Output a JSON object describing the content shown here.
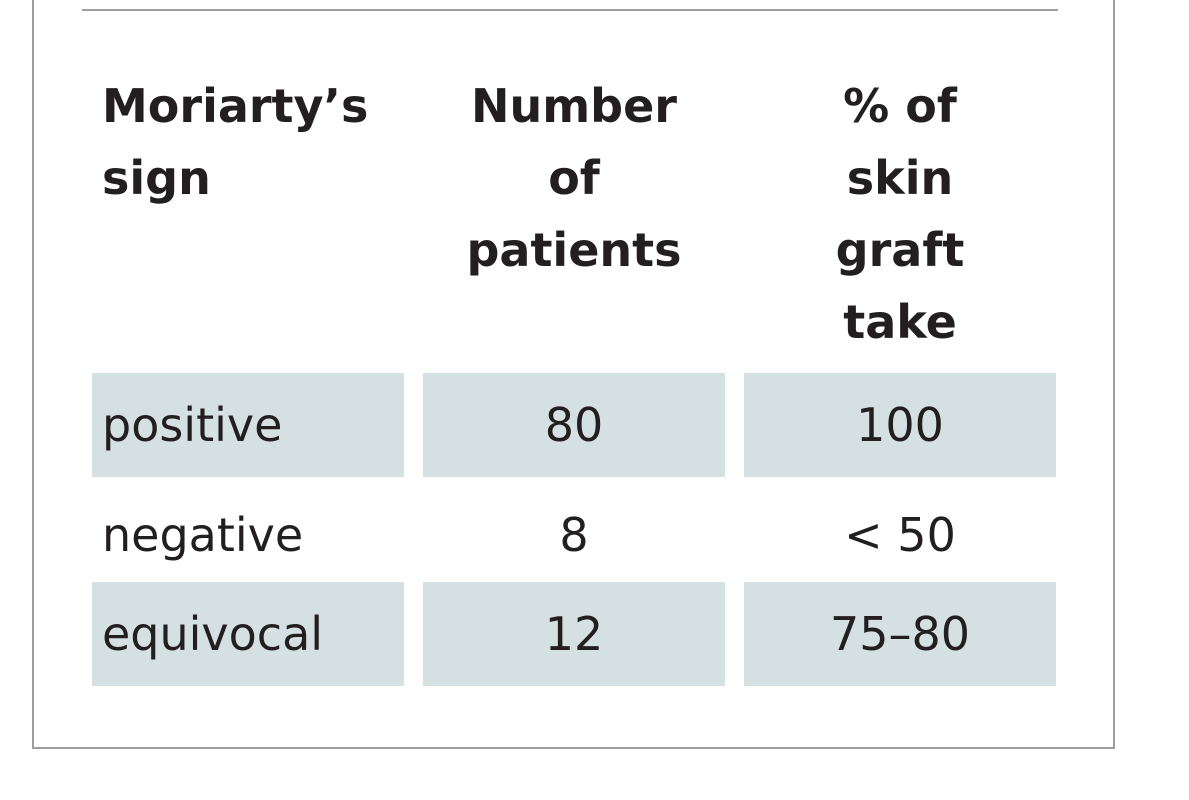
{
  "table": {
    "headers": [
      "Moriarty’s\nsign",
      "Number\nof\npatients",
      "% of\nskin\ngraft\ntake"
    ],
    "rows": [
      [
        "positive",
        "80",
        "100"
      ],
      [
        "negative",
        "8",
        "< 50"
      ],
      [
        "equivocal",
        "12",
        "75–80"
      ]
    ]
  },
  "colors": {
    "row_shading": "#d5e0e3",
    "border": "#9e9e9e",
    "text": "#231f20"
  }
}
